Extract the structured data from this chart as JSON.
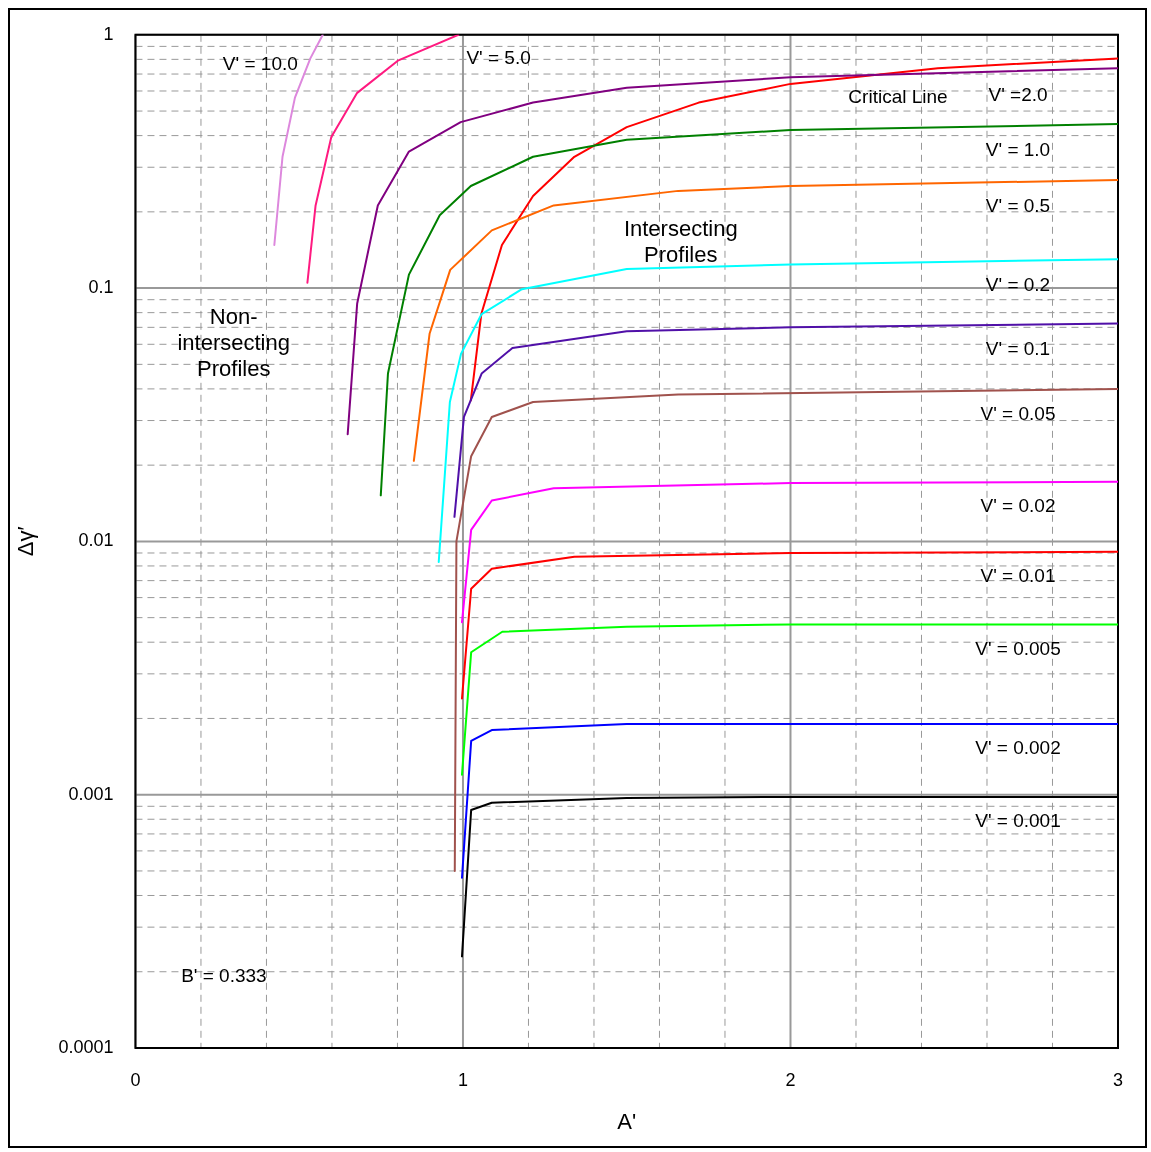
{
  "chart_data": {
    "type": "line",
    "xlabel": "A'",
    "ylabel": "Δγ′",
    "log": "y",
    "grid": true,
    "legend": false,
    "marker": "none",
    "line_style": "solid",
    "xlim": [
      0,
      3
    ],
    "ylim": [
      0.0001,
      1
    ],
    "xticks": [
      0,
      {
        "value": 0.2,
        "label": null
      },
      {
        "value": 0.4,
        "label": null
      },
      {
        "value": 0.6,
        "label": null
      },
      {
        "value": 0.8,
        "label": null
      },
      1,
      {
        "value": 1.2,
        "label": null
      },
      {
        "value": 1.4,
        "label": null
      },
      {
        "value": 1.6,
        "label": null
      },
      {
        "value": 1.8,
        "label": null
      },
      2,
      {
        "value": 2.2,
        "label": null
      },
      {
        "value": 2.4,
        "label": null
      },
      {
        "value": 2.6,
        "label": null
      },
      {
        "value": 2.8,
        "label": null
      },
      3
    ],
    "yticks": [
      0.0001,
      {
        "value": 0.0002,
        "label": null
      },
      {
        "value": 0.0003,
        "label": null
      },
      {
        "value": 0.0004,
        "label": null
      },
      {
        "value": 0.0005,
        "label": null
      },
      {
        "value": 0.0006,
        "label": null
      },
      {
        "value": 0.0007,
        "label": null
      },
      {
        "value": 0.0008,
        "label": null
      },
      {
        "value": 0.0009,
        "label": null
      },
      0.001,
      {
        "value": 0.002,
        "label": null
      },
      {
        "value": 0.003,
        "label": null
      },
      {
        "value": 0.004,
        "label": null
      },
      {
        "value": 0.005,
        "label": null
      },
      {
        "value": 0.006,
        "label": null
      },
      {
        "value": 0.007,
        "label": null
      },
      {
        "value": 0.008,
        "label": null
      },
      {
        "value": 0.009,
        "label": null
      },
      0.01,
      {
        "value": 0.02,
        "label": null
      },
      {
        "value": 0.03,
        "label": null
      },
      {
        "value": 0.04,
        "label": null
      },
      {
        "value": 0.05,
        "label": null
      },
      {
        "value": 0.06,
        "label": null
      },
      {
        "value": 0.07,
        "label": null
      },
      {
        "value": 0.08,
        "label": null
      },
      {
        "value": 0.09,
        "label": null
      },
      0.1,
      {
        "value": 0.2,
        "label": null
      },
      {
        "value": 0.3,
        "label": null
      },
      {
        "value": 0.4,
        "label": null
      },
      {
        "value": 0.5,
        "label": null
      },
      {
        "value": 0.6,
        "label": null
      },
      {
        "value": 0.7,
        "label": null
      },
      {
        "value": 0.8,
        "label": null
      },
      {
        "value": 0.9,
        "label": null
      },
      1
    ],
    "series": [
      {
        "name": "V' = 10.0",
        "color": "#dd88dd",
        "x": [
          0.424,
          0.449,
          0.487,
          0.534,
          0.572
        ],
        "values": [
          0.148,
          0.33,
          0.565,
          0.807,
          1.0
        ]
      },
      {
        "name": "V' = 5.0",
        "color": "#ff1a80",
        "x": [
          0.525,
          0.55,
          0.598,
          0.677,
          0.803,
          0.986
        ],
        "values": [
          0.105,
          0.212,
          0.395,
          0.59,
          0.793,
          1.0
        ]
      },
      {
        "name": "V' =2.0",
        "color": "#800080",
        "x": [
          0.648,
          0.677,
          0.74,
          0.835,
          0.993,
          1.214,
          1.5,
          2,
          3
        ],
        "values": [
          0.0265,
          0.087,
          0.212,
          0.346,
          0.452,
          0.54,
          0.618,
          0.68,
          0.738
        ]
      },
      {
        "name": "V' = 1.0",
        "color": "#008000",
        "x": [
          0.749,
          0.771,
          0.835,
          0.929,
          1.024,
          1.214,
          1.5,
          2,
          3
        ],
        "values": [
          0.0152,
          0.046,
          0.113,
          0.194,
          0.253,
          0.33,
          0.385,
          0.421,
          0.444
        ]
      },
      {
        "name": "V' = 0.5",
        "color": "#ff6600",
        "x": [
          0.85,
          0.898,
          0.961,
          1.088,
          1.277,
          1.657,
          2,
          3
        ],
        "values": [
          0.0208,
          0.066,
          0.118,
          0.169,
          0.212,
          0.242,
          0.253,
          0.267
        ]
      },
      {
        "name": "V' = 0.2",
        "color": "#00ffff",
        "x": [
          0.926,
          0.96,
          0.994,
          1.057,
          1.18,
          1.5,
          2,
          3
        ],
        "values": [
          0.0083,
          0.0355,
          0.055,
          0.079,
          0.099,
          0.119,
          0.124,
          0.13
        ]
      },
      {
        "name": "V' = 0.1",
        "color": "#5010a8",
        "x": [
          0.974,
          1.003,
          1.057,
          1.151,
          1.5,
          2,
          3
        ],
        "values": [
          0.0125,
          0.031,
          0.046,
          0.058,
          0.0675,
          0.07,
          0.0725
        ]
      },
      {
        "name": "V' = 0.05",
        "color": "#a0524d",
        "x": [
          0.975,
          0.98,
          1.025,
          1.088,
          1.214,
          1.657,
          3
        ],
        "values": [
          0.0005,
          0.01,
          0.0217,
          0.031,
          0.0355,
          0.038,
          0.04
        ]
      },
      {
        "name": "V' = 0.02",
        "color": "#ff00ff",
        "x": [
          0.997,
          1.025,
          1.088,
          1.277,
          2,
          3
        ],
        "values": [
          0.0048,
          0.0111,
          0.0145,
          0.0162,
          0.017,
          0.0172
        ]
      },
      {
        "name": "V' = 0.01",
        "color": "#ff0000",
        "x": [
          0.997,
          1.025,
          1.088,
          1.34,
          2,
          3
        ],
        "values": [
          0.0024,
          0.0065,
          0.0078,
          0.0087,
          0.009,
          0.0091
        ]
      },
      {
        "name": "V' = 0.005",
        "color": "#00ff00",
        "x": [
          0.997,
          1.025,
          1.12,
          1.5,
          2,
          3
        ],
        "values": [
          0.0012,
          0.00365,
          0.0044,
          0.0046,
          0.0047,
          0.0047
        ]
      },
      {
        "name": "V' = 0.002",
        "color": "#0000ff",
        "x": [
          0.997,
          1.025,
          1.088,
          1.5,
          2,
          3
        ],
        "values": [
          0.00047,
          0.00163,
          0.0018,
          0.0019,
          0.0019,
          0.0019
        ]
      },
      {
        "name": "V' = 0.001",
        "color": "#000000",
        "x": [
          0.997,
          1.025,
          1.088,
          1.5,
          2,
          3
        ],
        "values": [
          0.00023,
          0.00087,
          0.00093,
          0.00097,
          0.00098,
          0.00098
        ]
      },
      {
        "name": "Critical Line",
        "color": "#ff0000",
        "x": [
          1.024,
          1.056,
          1.119,
          1.214,
          1.34,
          1.5,
          1.72,
          2,
          2.45,
          3
        ],
        "values": [
          0.036,
          0.079,
          0.148,
          0.231,
          0.33,
          0.432,
          0.54,
          0.64,
          0.738,
          0.807
        ]
      }
    ],
    "annotations": [
      "Intersecting\nProfiles",
      "Non-\nintersecting\nProfiles",
      "B' = 0.333"
    ]
  }
}
